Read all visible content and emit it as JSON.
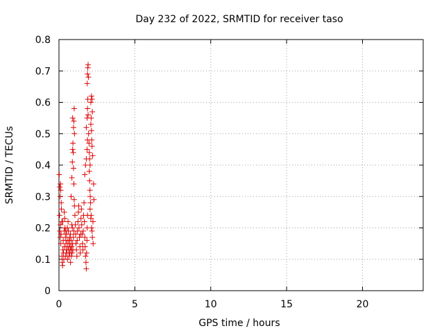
{
  "chart_data": {
    "type": "scatter",
    "title": "Day 232 of 2022, SRMTID for receiver taso",
    "xlabel": "GPS time / hours",
    "ylabel": "SRMTID / TECUs",
    "xlim": [
      0,
      24
    ],
    "ylim": [
      0,
      0.8
    ],
    "xticks": [
      0,
      5,
      10,
      15,
      20
    ],
    "yticks": [
      0,
      0.1,
      0.2,
      0.3,
      0.4,
      0.5,
      0.6,
      0.7,
      0.8
    ],
    "xtick_labels": [
      "0",
      "5",
      "10",
      "15",
      "20"
    ],
    "ytick_labels": [
      "0",
      "0.1",
      "0.2",
      "0.3",
      "0.4",
      "0.5",
      "0.6",
      "0.7",
      "0.8"
    ],
    "grid": true,
    "marker_color": "#dd0000",
    "series": [
      {
        "name": "SRMTID",
        "marker": "plus",
        "points": [
          [
            0.02,
            0.37
          ],
          [
            0.05,
            0.33
          ],
          [
            0.08,
            0.3
          ],
          [
            0.1,
            0.34
          ],
          [
            0.12,
            0.32
          ],
          [
            0.04,
            0.24
          ],
          [
            0.06,
            0.19
          ],
          [
            0.08,
            0.17
          ],
          [
            0.1,
            0.21
          ],
          [
            0.12,
            0.15
          ],
          [
            0.14,
            0.18
          ],
          [
            0.16,
            0.26
          ],
          [
            0.18,
            0.22
          ],
          [
            0.2,
            0.11
          ],
          [
            0.22,
            0.09
          ],
          [
            0.24,
            0.08
          ],
          [
            0.26,
            0.13
          ],
          [
            0.28,
            0.16
          ],
          [
            0.3,
            0.12
          ],
          [
            0.32,
            0.1
          ],
          [
            0.34,
            0.19
          ],
          [
            0.36,
            0.14
          ],
          [
            0.38,
            0.23
          ],
          [
            0.4,
            0.2
          ],
          [
            0.42,
            0.17
          ],
          [
            0.44,
            0.11
          ],
          [
            0.46,
            0.15
          ],
          [
            0.48,
            0.13
          ],
          [
            0.5,
            0.18
          ],
          [
            0.52,
            0.12
          ],
          [
            0.54,
            0.16
          ],
          [
            0.56,
            0.1
          ],
          [
            0.58,
            0.14
          ],
          [
            0.6,
            0.22
          ],
          [
            0.62,
            0.19
          ],
          [
            0.64,
            0.13
          ],
          [
            0.66,
            0.11
          ],
          [
            0.68,
            0.15
          ],
          [
            0.7,
            0.12
          ],
          [
            0.72,
            0.17
          ],
          [
            0.74,
            0.14
          ],
          [
            0.76,
            0.09
          ],
          [
            0.78,
            0.13
          ],
          [
            0.8,
            0.16
          ],
          [
            0.82,
            0.11
          ],
          [
            0.84,
            0.14
          ],
          [
            0.86,
            0.12
          ],
          [
            0.88,
            0.2
          ],
          [
            0.9,
            0.15
          ],
          [
            0.92,
            0.13
          ],
          [
            0.15,
            0.28
          ],
          [
            0.25,
            0.22
          ],
          [
            0.35,
            0.25
          ],
          [
            0.45,
            0.19
          ],
          [
            0.55,
            0.2
          ],
          [
            0.65,
            0.16
          ],
          [
            0.75,
            0.18
          ],
          [
            0.85,
            0.21
          ],
          [
            0.95,
            0.17
          ],
          [
            0.98,
            0.19
          ],
          [
            0.8,
            0.3
          ],
          [
            0.85,
            0.36
          ],
          [
            0.88,
            0.41
          ],
          [
            0.9,
            0.45
          ],
          [
            0.92,
            0.47
          ],
          [
            0.94,
            0.44
          ],
          [
            0.96,
            0.39
          ],
          [
            0.98,
            0.34
          ],
          [
            1.0,
            0.29
          ],
          [
            1.02,
            0.27
          ],
          [
            0.96,
            0.52
          ],
          [
            0.98,
            0.54
          ],
          [
            1.0,
            0.58
          ],
          [
            1.02,
            0.5
          ],
          [
            0.9,
            0.55
          ],
          [
            1.05,
            0.24
          ],
          [
            1.08,
            0.21
          ],
          [
            1.1,
            0.18
          ],
          [
            1.12,
            0.15
          ],
          [
            1.15,
            0.13
          ],
          [
            1.18,
            0.11
          ],
          [
            1.2,
            0.16
          ],
          [
            1.22,
            0.19
          ],
          [
            1.25,
            0.22
          ],
          [
            1.28,
            0.25
          ],
          [
            1.3,
            0.27
          ],
          [
            1.32,
            0.2
          ],
          [
            1.35,
            0.17
          ],
          [
            1.38,
            0.14
          ],
          [
            1.4,
            0.12
          ],
          [
            1.42,
            0.18
          ],
          [
            1.45,
            0.23
          ],
          [
            1.48,
            0.26
          ],
          [
            1.5,
            0.21
          ],
          [
            1.52,
            0.18
          ],
          [
            1.55,
            0.15
          ],
          [
            1.58,
            0.13
          ],
          [
            1.6,
            0.19
          ],
          [
            1.62,
            0.24
          ],
          [
            1.65,
            0.28
          ],
          [
            1.68,
            0.22
          ],
          [
            1.7,
            0.17
          ],
          [
            1.72,
            0.14
          ],
          [
            1.75,
            0.11
          ],
          [
            1.78,
            0.09
          ],
          [
            1.8,
            0.07
          ],
          [
            1.82,
            0.12
          ],
          [
            1.84,
            0.16
          ],
          [
            1.86,
            0.2
          ],
          [
            1.88,
            0.24
          ],
          [
            1.7,
            0.37
          ],
          [
            1.75,
            0.4
          ],
          [
            1.8,
            0.42
          ],
          [
            1.85,
            0.45
          ],
          [
            1.88,
            0.48
          ],
          [
            1.8,
            0.52
          ],
          [
            1.85,
            0.55
          ],
          [
            1.88,
            0.58
          ],
          [
            1.9,
            0.61
          ],
          [
            1.92,
            0.56
          ],
          [
            1.86,
            0.66
          ],
          [
            1.88,
            0.69
          ],
          [
            1.9,
            0.71
          ],
          [
            1.92,
            0.72
          ],
          [
            1.94,
            0.68
          ],
          [
            1.95,
            0.5
          ],
          [
            1.98,
            0.47
          ],
          [
            2.0,
            0.44
          ],
          [
            2.02,
            0.42
          ],
          [
            2.05,
            0.4
          ],
          [
            2.0,
            0.38
          ],
          [
            2.02,
            0.35
          ],
          [
            2.04,
            0.32
          ],
          [
            2.06,
            0.3
          ],
          [
            2.08,
            0.28
          ],
          [
            2.1,
            0.53
          ],
          [
            2.12,
            0.55
          ],
          [
            2.14,
            0.51
          ],
          [
            2.16,
            0.48
          ],
          [
            2.18,
            0.46
          ],
          [
            2.1,
            0.6
          ],
          [
            2.14,
            0.62
          ],
          [
            2.18,
            0.61
          ],
          [
            2.2,
            0.57
          ],
          [
            2.22,
            0.43
          ],
          [
            2.05,
            0.26
          ],
          [
            2.1,
            0.23
          ],
          [
            2.15,
            0.2
          ],
          [
            2.2,
            0.17
          ],
          [
            2.25,
            0.15
          ],
          [
            2.28,
            0.34
          ],
          [
            2.3,
            0.29
          ],
          [
            2.24,
            0.22
          ],
          [
            2.18,
            0.19
          ],
          [
            2.12,
            0.24
          ]
        ]
      }
    ]
  }
}
